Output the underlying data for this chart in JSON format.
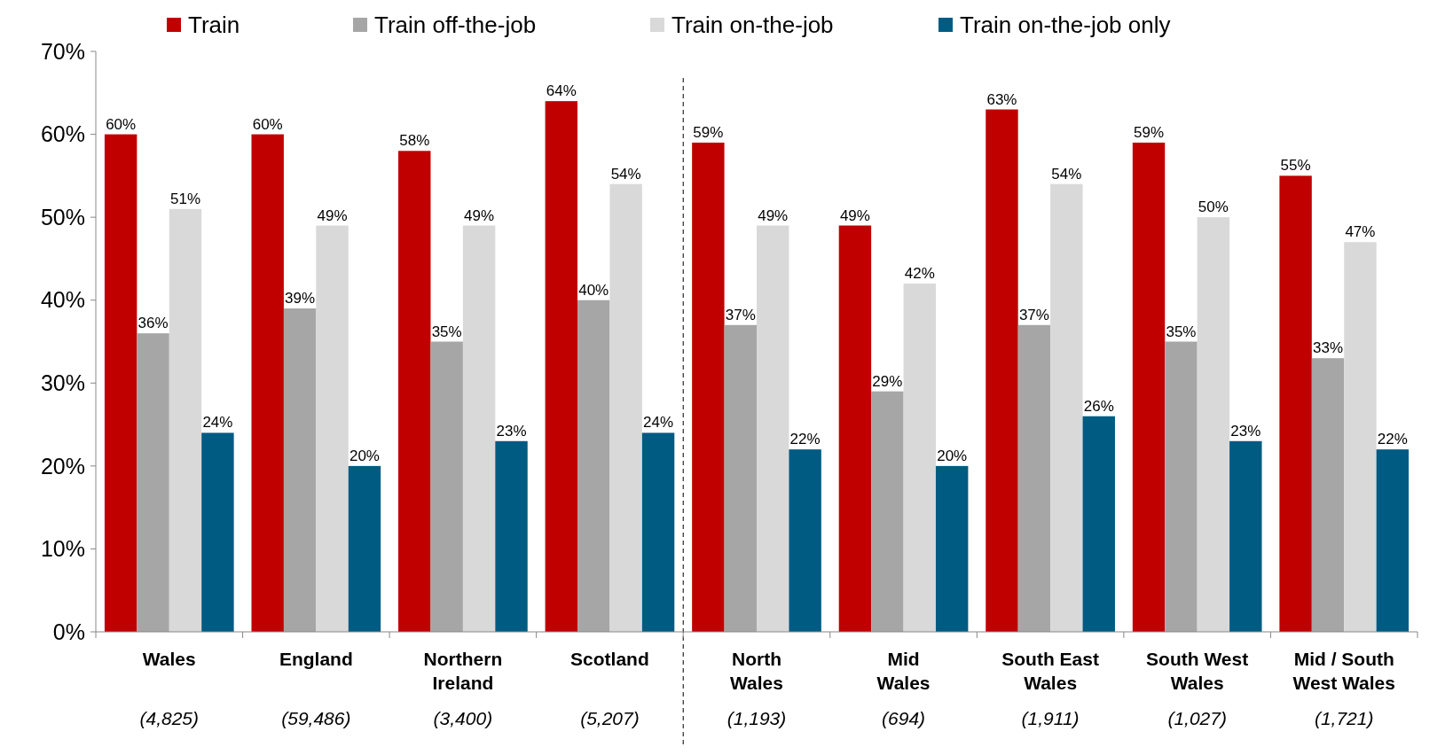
{
  "chart_data": {
    "type": "bar",
    "categories": [
      "Wales\n(4,825)",
      "England\n(59,486)",
      "Northern\nIreland\n(3,400)",
      "Scotland\n(5,207)",
      "North\nWales\n(1,193)",
      "Mid\nWales\n(694)",
      "South East\nWales\n(1,911)",
      "South West\nWales\n(1,027)",
      "Mid / South\nWest Wales\n(1,721)"
    ],
    "series": [
      {
        "name": "Train",
        "color": "#c00000",
        "values": [
          60,
          60,
          58,
          64,
          59,
          49,
          63,
          59,
          55
        ],
        "value_labels": [
          "60%",
          "60%",
          "58%",
          "64%",
          "59%",
          "49%",
          "63%",
          "59%",
          "55%"
        ]
      },
      {
        "name": "Train off-the-job",
        "color": "#a6a6a6",
        "values": [
          36,
          39,
          35,
          40,
          37,
          29,
          37,
          35,
          33
        ],
        "value_labels": [
          "36%",
          "39%",
          "35%",
          "40%",
          "37%",
          "29%",
          "37%",
          "35%",
          "33%"
        ]
      },
      {
        "name": "Train on-the-job",
        "color": "#d9d9d9",
        "values": [
          51,
          49,
          49,
          54,
          49,
          42,
          54,
          50,
          47
        ],
        "value_labels": [
          "51%",
          "49%",
          "49%",
          "54%",
          "49%",
          "42%",
          "54%",
          "50%",
          "47%"
        ]
      },
      {
        "name": "Train on-the-job only",
        "color": "#005b82",
        "values": [
          24,
          20,
          23,
          24,
          22,
          20,
          26,
          23,
          22
        ],
        "value_labels": [
          "24%",
          "20%",
          "23%",
          "24%",
          "22%",
          "20%",
          "26%",
          "23%",
          "22%"
        ]
      }
    ],
    "ylim": [
      0,
      70
    ],
    "yticks": [
      {
        "value": 0,
        "label": "0%"
      },
      {
        "value": 10,
        "label": "10%"
      },
      {
        "value": 20,
        "label": "20%"
      },
      {
        "value": 30,
        "label": "30%"
      },
      {
        "value": 40,
        "label": "40%"
      },
      {
        "value": 50,
        "label": "50%"
      },
      {
        "value": 60,
        "label": "60%"
      },
      {
        "value": 70,
        "label": "70%"
      }
    ],
    "legend": "top",
    "grid": false
  }
}
